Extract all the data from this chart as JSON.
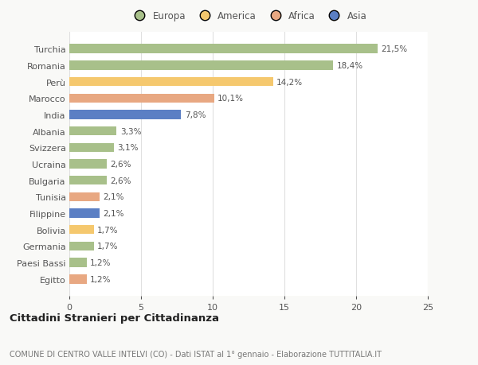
{
  "categories": [
    "Turchia",
    "Romania",
    "Perù",
    "Marocco",
    "India",
    "Albania",
    "Svizzera",
    "Ucraina",
    "Bulgaria",
    "Tunisia",
    "Filippine",
    "Bolivia",
    "Germania",
    "Paesi Bassi",
    "Egitto"
  ],
  "values": [
    21.5,
    18.4,
    14.2,
    10.1,
    7.8,
    3.3,
    3.1,
    2.6,
    2.6,
    2.1,
    2.1,
    1.7,
    1.7,
    1.2,
    1.2
  ],
  "labels": [
    "21,5%",
    "18,4%",
    "14,2%",
    "10,1%",
    "7,8%",
    "3,3%",
    "3,1%",
    "2,6%",
    "2,6%",
    "2,1%",
    "2,1%",
    "1,7%",
    "1,7%",
    "1,2%",
    "1,2%"
  ],
  "colors": [
    "#a8c08a",
    "#a8c08a",
    "#f5c86e",
    "#e8a882",
    "#5b7fc4",
    "#a8c08a",
    "#a8c08a",
    "#a8c08a",
    "#a8c08a",
    "#e8a882",
    "#5b7fc4",
    "#f5c86e",
    "#a8c08a",
    "#a8c08a",
    "#e8a882"
  ],
  "legend_labels": [
    "Europa",
    "America",
    "Africa",
    "Asia"
  ],
  "legend_colors": [
    "#a8c08a",
    "#f5c86e",
    "#e8a882",
    "#5b7fc4"
  ],
  "title": "Cittadini Stranieri per Cittadinanza",
  "subtitle": "COMUNE DI CENTRO VALLE INTELVI (CO) - Dati ISTAT al 1° gennaio - Elaborazione TUTTITALIA.IT",
  "xlim": [
    0,
    25
  ],
  "xticks": [
    0,
    5,
    10,
    15,
    20,
    25
  ],
  "background_color": "#f9f9f7",
  "bar_background": "#ffffff",
  "grid_color": "#e0e0e0",
  "text_color": "#555555",
  "title_color": "#222222",
  "subtitle_color": "#777777"
}
